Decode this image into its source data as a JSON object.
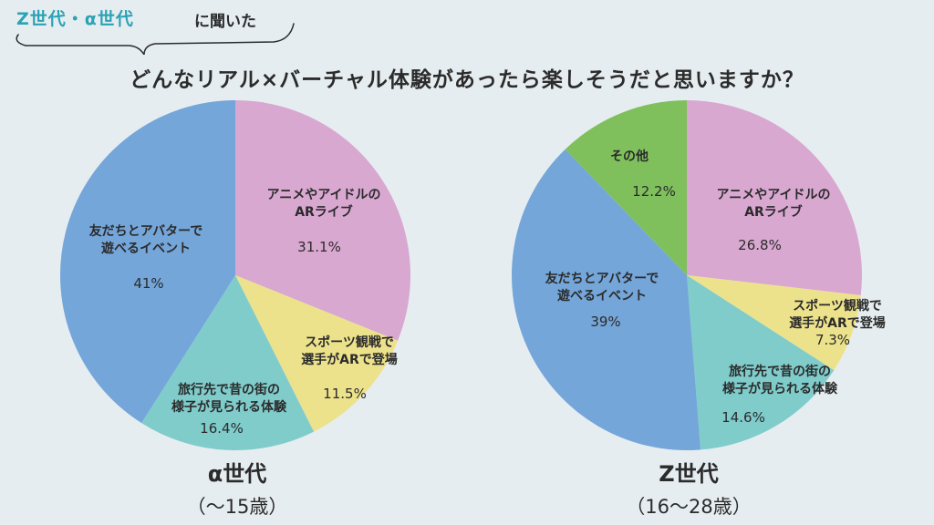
{
  "header": {
    "tag": "Z世代・α世代",
    "suffix": "に聞いた"
  },
  "question": "どんなリアル×バーチャル体験があったら楽しそうだと思いますか？",
  "colors": {
    "background": "#e6edf0",
    "anime": "#d9a8d1",
    "sports": "#ede28c",
    "travel": "#7fcccb",
    "friends": "#74a6d9",
    "other": "#7fc05d",
    "accent": "#2aa3b5"
  },
  "chart_data": [
    {
      "type": "pie",
      "group_label": "α世代",
      "group_range": "（〜15歳）",
      "slices": [
        {
          "label": [
            "アニメやアイドルの",
            "ARライブ"
          ],
          "value": 31.1,
          "display": "31.1%",
          "color_key": "anime"
        },
        {
          "label": [
            "スポーツ観戦で",
            "選手がARで登場"
          ],
          "value": 11.5,
          "display": "11.5%",
          "color_key": "sports"
        },
        {
          "label": [
            "旅行先で昔の街の",
            "様子が見られる体験"
          ],
          "value": 16.4,
          "display": "16.4%",
          "color_key": "travel"
        },
        {
          "label": [
            "友だちとアバターで",
            "遊べるイベント"
          ],
          "value": 41,
          "display": "41%",
          "color_key": "friends"
        }
      ]
    },
    {
      "type": "pie",
      "group_label": "Z世代",
      "group_range": "（16〜28歳）",
      "slices": [
        {
          "label": [
            "アニメやアイドルの",
            "ARライブ"
          ],
          "value": 26.8,
          "display": "26.8%",
          "color_key": "anime"
        },
        {
          "label": [
            "スポーツ観戦で",
            "選手がARで登場"
          ],
          "value": 7.3,
          "display": "7.3%",
          "color_key": "sports"
        },
        {
          "label": [
            "旅行先で昔の街の",
            "様子が見られる体験"
          ],
          "value": 14.6,
          "display": "14.6%",
          "color_key": "travel"
        },
        {
          "label": [
            "友だちとアバターで",
            "遊べるイベント"
          ],
          "value": 39,
          "display": "39%",
          "color_key": "friends"
        },
        {
          "label": [
            "その他"
          ],
          "value": 12.2,
          "display": "12.2%",
          "color_key": "other"
        }
      ]
    }
  ]
}
